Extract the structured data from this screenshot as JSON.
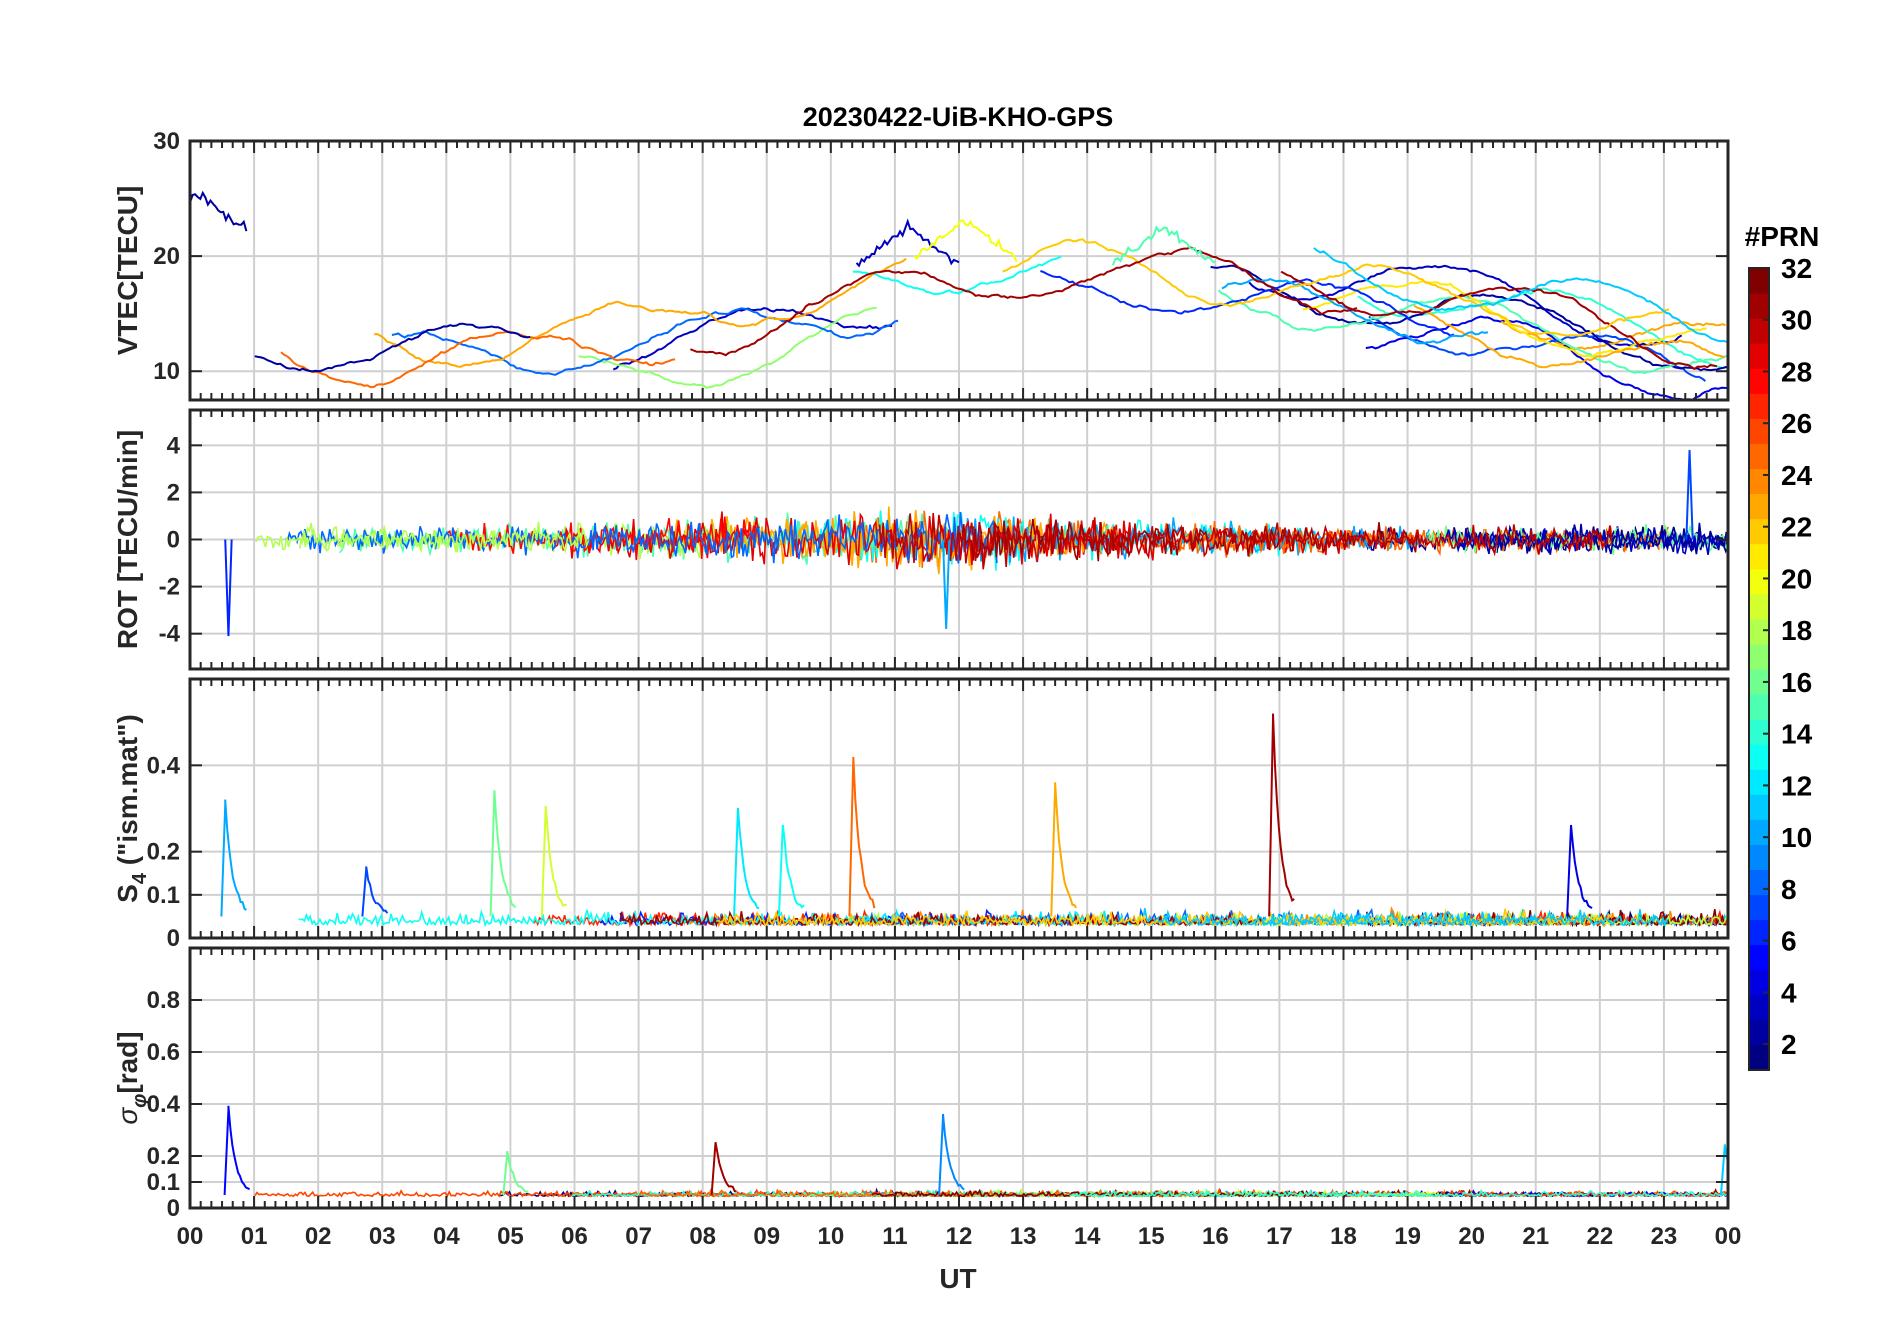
{
  "chart_data": {
    "type": "line",
    "title": "20230422-UiB-KHO-GPS",
    "xlabel": "UT",
    "x_tick_labels": [
      "00",
      "01",
      "02",
      "03",
      "04",
      "05",
      "06",
      "07",
      "08",
      "09",
      "10",
      "11",
      "12",
      "13",
      "14",
      "15",
      "16",
      "17",
      "18",
      "19",
      "20",
      "21",
      "22",
      "23",
      "00"
    ],
    "xlim": [
      0,
      24
    ],
    "panels": [
      {
        "id": "vtec",
        "ylabel": "VTEC[TECU]",
        "ylim": [
          7.5,
          30
        ],
        "yticks": [
          10,
          20,
          30
        ],
        "ytick_labels": [
          "10",
          "20",
          "30"
        ],
        "series_summary": [
          {
            "prn": 2,
            "peak_hour": 0.1,
            "peak_value": 25.5
          },
          {
            "prn": 3,
            "peak_hour": 11.2,
            "peak_value": 22.5
          },
          {
            "prn": 20,
            "peak_hour": 12.1,
            "peak_value": 23.0
          },
          {
            "prn": 15,
            "peak_hour": 15.2,
            "peak_value": 22.5
          }
        ]
      },
      {
        "id": "rot",
        "ylabel": "ROT [TECU/min]",
        "ylim": [
          -5.5,
          5.5
        ],
        "yticks": [
          -4,
          -2,
          0,
          2,
          4
        ],
        "ytick_labels": [
          "-4",
          "-2",
          "0",
          "2",
          "4"
        ],
        "series_summary": [
          {
            "prn": 6,
            "spike_hour": 0.6,
            "spike_value": -4.1
          },
          {
            "prn": 10,
            "spike_hour": 11.8,
            "spike_value": -3.8
          },
          {
            "prn": 7,
            "spike_hour": 23.4,
            "spike_value": 3.8
          }
        ]
      },
      {
        "id": "s4",
        "ylabel": "S4 (\"ism.mat\")",
        "ylabel_main": "S",
        "ylabel_sub": "4",
        "ylabel_rest": " (\"ism.mat\")",
        "ylim": [
          0,
          0.6
        ],
        "yticks": [
          0,
          0.1,
          0.2,
          0.4
        ],
        "ytick_labels": [
          "0",
          "0.1",
          "0.2",
          "0.4"
        ],
        "spikes": [
          {
            "hour": 0.55,
            "value": 0.31,
            "prn": 10
          },
          {
            "hour": 2.75,
            "value": 0.16,
            "prn": 7
          },
          {
            "hour": 4.75,
            "value": 0.34,
            "prn": 16
          },
          {
            "hour": 5.55,
            "value": 0.3,
            "prn": 19
          },
          {
            "hour": 8.55,
            "value": 0.3,
            "prn": 12
          },
          {
            "hour": 9.25,
            "value": 0.26,
            "prn": 13
          },
          {
            "hour": 10.35,
            "value": 0.41,
            "prn": 25
          },
          {
            "hour": 13.5,
            "value": 0.35,
            "prn": 23
          },
          {
            "hour": 16.9,
            "value": 0.51,
            "prn": 31
          },
          {
            "hour": 21.55,
            "value": 0.26,
            "prn": 4
          }
        ]
      },
      {
        "id": "sigma_phi",
        "ylabel": "σφ[rad]",
        "ylabel_main": "σ",
        "ylabel_sub": "φ",
        "ylabel_rest": "[rad]",
        "ylim": [
          0,
          1.0
        ],
        "yticks": [
          0,
          0.1,
          0.2,
          0.4,
          0.6,
          0.8
        ],
        "ytick_labels": [
          "0",
          "0.1",
          "0.2",
          "0.4",
          "0.6",
          "0.8"
        ],
        "spikes": [
          {
            "hour": 0.6,
            "value": 0.38,
            "prn": 5
          },
          {
            "hour": 4.95,
            "value": 0.21,
            "prn": 16
          },
          {
            "hour": 8.2,
            "value": 0.25,
            "prn": 31
          },
          {
            "hour": 11.75,
            "value": 0.35,
            "prn": 9
          },
          {
            "hour": 23.95,
            "value": 0.24,
            "prn": 11
          }
        ]
      }
    ],
    "colorbar": {
      "label": "#PRN",
      "range": [
        1,
        32
      ],
      "ticks": [
        2,
        4,
        6,
        8,
        10,
        12,
        14,
        16,
        18,
        20,
        22,
        24,
        26,
        28,
        30,
        32
      ],
      "tick_labels": [
        "2",
        "4",
        "6",
        "8",
        "10",
        "12",
        "14",
        "16",
        "18",
        "20",
        "22",
        "24",
        "26",
        "28",
        "30",
        "32"
      ],
      "colormap": "jet",
      "levels": 32
    },
    "series_count": 32,
    "grid": true
  },
  "colors": {
    "axis": "#262626",
    "grid": "#d0d0d0",
    "background": "#ffffff"
  }
}
